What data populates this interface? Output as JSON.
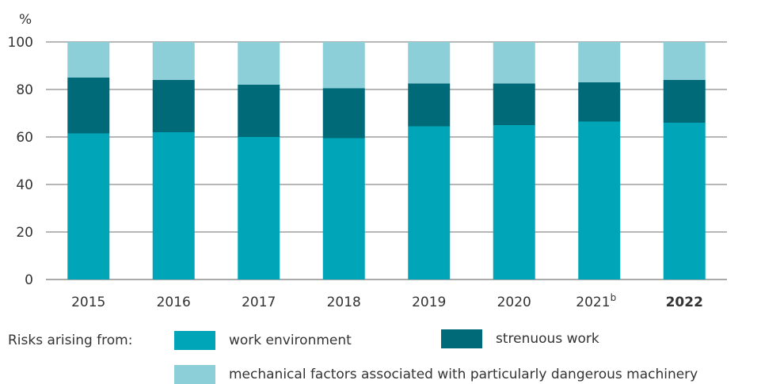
{
  "chart_data": {
    "type": "bar",
    "stacked": true,
    "ylabel": "%",
    "ylim": [
      0,
      100
    ],
    "yticks": [
      0,
      20,
      40,
      60,
      80,
      100
    ],
    "grid": true,
    "categories": [
      "2015",
      "2016",
      "2017",
      "2018",
      "2019",
      "2020",
      "2021",
      "2022"
    ],
    "category_superscripts": [
      "",
      "",
      "",
      "",
      "",
      "",
      "b",
      ""
    ],
    "bold_categories": [
      "2022"
    ],
    "series": [
      {
        "name": "work environment",
        "color": "#00a5b8",
        "values": [
          61.5,
          62,
          60,
          59.5,
          64.5,
          65,
          66.5,
          66
        ]
      },
      {
        "name": "strenuous work",
        "color": "#006a78",
        "values": [
          23.5,
          22,
          22,
          21,
          18,
          17.5,
          16.5,
          18
        ]
      },
      {
        "name": "mechanical factors associated with particularly dangerous machinery",
        "color": "#8ccfd8",
        "values": [
          15,
          16,
          18,
          19.5,
          17.5,
          17.5,
          17,
          16
        ]
      }
    ],
    "legend_title": "Risks arising from:",
    "legend_position": "bottom"
  }
}
